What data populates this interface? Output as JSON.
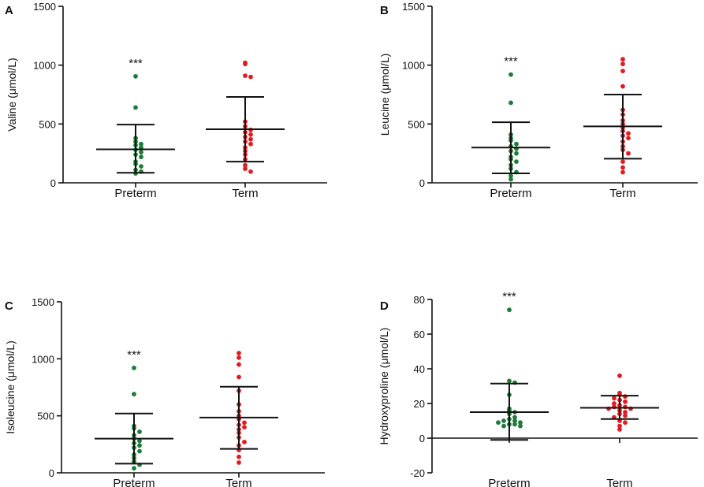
{
  "colors": {
    "preterm": "#1e7b3a",
    "term": "#e11b22",
    "axis": "#111111"
  },
  "chart_data": [
    {
      "type": "scatter",
      "panel": "A",
      "ylabel": "Valine (μmol/L)",
      "ylim": [
        0,
        1500
      ],
      "yticks": [
        0,
        500,
        1000,
        1500
      ],
      "ytick_labels": [
        "0",
        "500",
        "1000",
        "1500"
      ],
      "categories": [
        "Preterm",
        "Term"
      ],
      "significance": "***",
      "series": [
        {
          "name": "Preterm",
          "mean": 285,
          "sd_low": 85,
          "sd_high": 495,
          "values": [
            905,
            640,
            380,
            350,
            330,
            320,
            300,
            280,
            260,
            240,
            220,
            180,
            160,
            140,
            110,
            95,
            80
          ]
        },
        {
          "name": "Term",
          "mean": 455,
          "sd_low": 180,
          "sd_high": 730,
          "values": [
            1020,
            1010,
            910,
            900,
            520,
            480,
            450,
            430,
            410,
            390,
            370,
            350,
            330,
            300,
            270,
            240,
            200,
            150,
            120,
            95
          ]
        }
      ]
    },
    {
      "type": "scatter",
      "panel": "B",
      "ylabel": "Leucine (μmol/L)",
      "ylim": [
        0,
        1500
      ],
      "yticks": [
        0,
        500,
        1000,
        1500
      ],
      "ytick_labels": [
        "0",
        "500",
        "1000",
        "1500"
      ],
      "categories": [
        "Preterm",
        "Term"
      ],
      "significance": "***",
      "series": [
        {
          "name": "Preterm",
          "mean": 300,
          "sd_low": 80,
          "sd_high": 515,
          "values": [
            920,
            680,
            410,
            380,
            360,
            330,
            310,
            290,
            270,
            250,
            220,
            200,
            180,
            150,
            120,
            90,
            60,
            30
          ]
        },
        {
          "name": "Term",
          "mean": 480,
          "sd_low": 205,
          "sd_high": 750,
          "values": [
            1050,
            1010,
            950,
            820,
            620,
            580,
            530,
            500,
            470,
            440,
            420,
            400,
            380,
            350,
            310,
            280,
            250,
            180,
            130,
            90
          ]
        }
      ]
    },
    {
      "type": "scatter",
      "panel": "C",
      "ylabel": "Isoleucine (μmol/L)",
      "ylim": [
        0,
        1500
      ],
      "yticks": [
        0,
        500,
        1000,
        1500
      ],
      "ytick_labels": [
        "0",
        "500",
        "1000",
        "1500"
      ],
      "categories": [
        "Preterm",
        "Term"
      ],
      "significance": "***",
      "series": [
        {
          "name": "Preterm",
          "mean": 300,
          "sd_low": 80,
          "sd_high": 520,
          "values": [
            920,
            690,
            410,
            390,
            360,
            330,
            300,
            280,
            260,
            240,
            220,
            190,
            160,
            130,
            100,
            70,
            40
          ]
        },
        {
          "name": "Term",
          "mean": 485,
          "sd_low": 210,
          "sd_high": 755,
          "values": [
            1050,
            1010,
            950,
            840,
            720,
            600,
            540,
            500,
            470,
            440,
            420,
            400,
            380,
            350,
            310,
            270,
            240,
            200,
            140,
            90
          ]
        }
      ]
    },
    {
      "type": "scatter",
      "panel": "D",
      "ylabel": "Hydroxyproline (μmol/L)",
      "ylim": [
        -20,
        80
      ],
      "yticks": [
        -20,
        0,
        20,
        40,
        60,
        80
      ],
      "ytick_labels": [
        "-20",
        "0",
        "20",
        "40",
        "60",
        "80"
      ],
      "categories": [
        "Preterm",
        "Term"
      ],
      "significance": "***",
      "series": [
        {
          "name": "Preterm",
          "mean": 15,
          "sd_low": -1,
          "sd_high": 31.5,
          "values": [
            74,
            33,
            32,
            25,
            17,
            16,
            15,
            14,
            12,
            11,
            10,
            10,
            9,
            9,
            8,
            8,
            7,
            7
          ]
        },
        {
          "name": "Term",
          "mean": 17.5,
          "sd_low": 11,
          "sd_high": 24.5,
          "values": [
            36,
            26,
            25,
            24,
            23,
            22,
            21,
            20,
            19,
            18,
            18,
            17,
            17,
            16,
            15,
            14,
            13,
            12,
            10,
            9,
            7,
            5
          ]
        }
      ]
    }
  ]
}
